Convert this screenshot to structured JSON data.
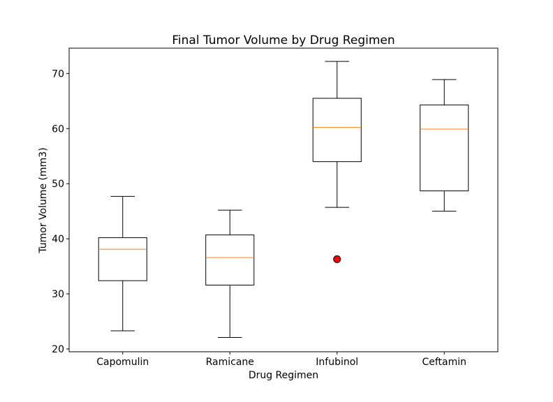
{
  "chart_data": {
    "type": "box",
    "title": "Final Tumor Volume by Drug Regimen",
    "xlabel": "Drug Regimen",
    "ylabel": "Tumor Volume (mm3)",
    "ylim": [
      19.5,
      74.6
    ],
    "yticks": [
      20,
      30,
      40,
      50,
      60,
      70
    ],
    "grid": false,
    "categories": [
      "Capomulin",
      "Ramicane",
      "Infubinol",
      "Ceftamin"
    ],
    "boxes": [
      {
        "whisker_low": 23.3,
        "q1": 32.4,
        "median": 38.1,
        "q3": 40.2,
        "whisker_high": 47.7,
        "outliers": []
      },
      {
        "whisker_low": 22.1,
        "q1": 31.6,
        "median": 36.6,
        "q3": 40.7,
        "whisker_high": 45.2,
        "outliers": []
      },
      {
        "whisker_low": 45.7,
        "q1": 54.0,
        "median": 60.2,
        "q3": 65.5,
        "whisker_high": 72.2,
        "outliers": [
          36.3
        ]
      },
      {
        "whisker_low": 45.0,
        "q1": 48.7,
        "median": 59.9,
        "q3": 64.3,
        "whisker_high": 68.9,
        "outliers": []
      }
    ],
    "colors": {
      "box": "#000000",
      "median": "#ff7f0e",
      "outlier_fill": "#ff0000",
      "outlier_edge": "#000000"
    }
  }
}
